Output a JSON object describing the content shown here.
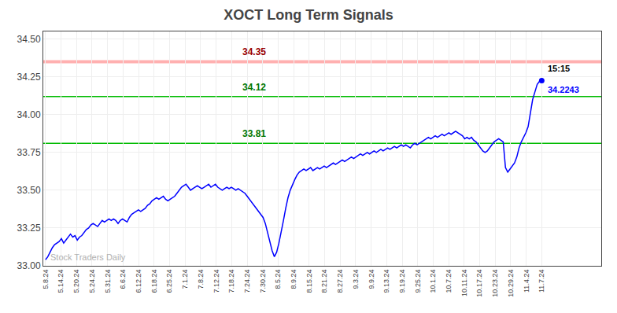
{
  "chart_data": {
    "type": "line",
    "title": "XOCT Long Term Signals",
    "color": "blue",
    "grid": true,
    "x": [
      0,
      1,
      2,
      3,
      4,
      5,
      6,
      7,
      8,
      9,
      10,
      11,
      12,
      13,
      14,
      15,
      16,
      17,
      18,
      19,
      20,
      21,
      22,
      23,
      24,
      25,
      26,
      27,
      28,
      29,
      30,
      31,
      32,
      33,
      34,
      35,
      36,
      37,
      38,
      39,
      40,
      41,
      42,
      43,
      44,
      45,
      46,
      47,
      48,
      49,
      50,
      51,
      52,
      53,
      54,
      55,
      56,
      57,
      58,
      59,
      60,
      61,
      62,
      63,
      64,
      65,
      66,
      67,
      68,
      69,
      70,
      71,
      72,
      73,
      74,
      75,
      76,
      77,
      78,
      79,
      80,
      81,
      82,
      83,
      84,
      85,
      86,
      87,
      88,
      89,
      90,
      91,
      92,
      93,
      94,
      95,
      96,
      97,
      98,
      99,
      100,
      101,
      102,
      103,
      104,
      105,
      106,
      107,
      108,
      109,
      110,
      111,
      112,
      113,
      114,
      115,
      116,
      117,
      118,
      119,
      120,
      121,
      122,
      123,
      124,
      125,
      126,
      127,
      128,
      129,
      130,
      131,
      132,
      133,
      134,
      135,
      136,
      137,
      138,
      139,
      140,
      141,
      142,
      143,
      144,
      145,
      146,
      147,
      148,
      149,
      150,
      151,
      152,
      153,
      154,
      155,
      156,
      157,
      158,
      159,
      160,
      161,
      162,
      163,
      164,
      165,
      166,
      167,
      168,
      169,
      170,
      171,
      172,
      173,
      174,
      175,
      176,
      177,
      178,
      179,
      180,
      181,
      182,
      183,
      184,
      185,
      186,
      187,
      188,
      189,
      190,
      191,
      192,
      193,
      194,
      195,
      196,
      197,
      198,
      199,
      200,
      201,
      202,
      203,
      204,
      205,
      206,
      207,
      208,
      209,
      210,
      211,
      212,
      213,
      214,
      215,
      216,
      217,
      218,
      219
    ],
    "values": [
      33.04,
      33.06,
      33.09,
      33.12,
      33.14,
      33.15,
      33.16,
      33.18,
      33.15,
      33.17,
      33.19,
      33.21,
      33.19,
      33.2,
      33.17,
      33.19,
      33.2,
      33.22,
      33.24,
      33.25,
      33.27,
      33.28,
      33.27,
      33.26,
      33.28,
      33.3,
      33.29,
      33.3,
      33.31,
      33.3,
      33.31,
      33.3,
      33.28,
      33.3,
      33.31,
      33.3,
      33.29,
      33.32,
      33.34,
      33.35,
      33.36,
      33.37,
      33.36,
      33.37,
      33.38,
      33.4,
      33.41,
      33.43,
      33.44,
      33.45,
      33.44,
      33.45,
      33.46,
      33.44,
      33.43,
      33.44,
      33.45,
      33.46,
      33.48,
      33.5,
      33.52,
      33.53,
      33.54,
      33.52,
      33.5,
      33.51,
      33.52,
      33.53,
      33.52,
      33.51,
      33.52,
      33.53,
      33.54,
      33.52,
      33.53,
      33.54,
      33.52,
      33.51,
      33.5,
      33.51,
      33.52,
      33.51,
      33.52,
      33.51,
      33.5,
      33.51,
      33.5,
      33.49,
      33.48,
      33.46,
      33.44,
      33.42,
      33.4,
      33.38,
      33.36,
      33.34,
      33.32,
      33.28,
      33.22,
      33.15,
      33.1,
      33.06,
      33.09,
      33.15,
      33.22,
      33.3,
      33.38,
      33.45,
      33.5,
      33.54,
      33.57,
      33.6,
      33.62,
      33.63,
      33.64,
      33.63,
      33.64,
      33.65,
      33.63,
      33.64,
      33.65,
      33.64,
      33.65,
      33.66,
      33.65,
      33.66,
      33.67,
      33.68,
      33.67,
      33.68,
      33.69,
      33.7,
      33.69,
      33.7,
      33.71,
      33.72,
      33.71,
      33.72,
      33.73,
      33.74,
      33.73,
      33.74,
      33.75,
      33.74,
      33.75,
      33.76,
      33.75,
      33.76,
      33.77,
      33.76,
      33.77,
      33.78,
      33.77,
      33.78,
      33.79,
      33.78,
      33.79,
      33.8,
      33.79,
      33.8,
      33.79,
      33.78,
      33.8,
      33.81,
      33.8,
      33.81,
      33.82,
      33.83,
      33.84,
      33.85,
      33.84,
      33.85,
      33.86,
      33.85,
      33.86,
      33.87,
      33.86,
      33.87,
      33.88,
      33.87,
      33.88,
      33.89,
      33.88,
      33.87,
      33.86,
      33.84,
      33.85,
      33.84,
      33.85,
      33.83,
      33.82,
      33.8,
      33.78,
      33.76,
      33.75,
      33.76,
      33.78,
      33.8,
      33.82,
      33.83,
      33.84,
      33.83,
      33.82,
      33.65,
      33.62,
      33.64,
      33.66,
      33.68,
      33.72,
      33.78,
      33.82,
      33.85,
      33.88,
      33.92,
      34.0,
      34.1,
      34.15,
      34.2,
      34.22,
      34.2243
    ],
    "xlim": [
      -1,
      245.28
    ],
    "xticks": [
      {
        "value": 0,
        "label": "5.8.24"
      },
      {
        "value": 6.84375,
        "label": "5.14.24"
      },
      {
        "value": 13.6875,
        "label": "5.20.24"
      },
      {
        "value": 20.53125,
        "label": "5.24.24"
      },
      {
        "value": 27.375,
        "label": "5.31.24"
      },
      {
        "value": 34.21875,
        "label": "6.6.24"
      },
      {
        "value": 41.0625,
        "label": "6.12.24"
      },
      {
        "value": 47.90625,
        "label": "6.18.24"
      },
      {
        "value": 54.75,
        "label": "6.25.24"
      },
      {
        "value": 61.59375,
        "label": "7.1.24"
      },
      {
        "value": 68.4375,
        "label": "7.8.24"
      },
      {
        "value": 75.28125,
        "label": "7.12.24"
      },
      {
        "value": 82.125,
        "label": "7.18.24"
      },
      {
        "value": 88.96875,
        "label": "7.24.24"
      },
      {
        "value": 95.8125,
        "label": "7.30.24"
      },
      {
        "value": 102.65625,
        "label": "8.5.24"
      },
      {
        "value": 109.5,
        "label": "8.9.24"
      },
      {
        "value": 116.34375,
        "label": "8.15.24"
      },
      {
        "value": 123.1875,
        "label": "8.21.24"
      },
      {
        "value": 130.03125,
        "label": "8.27.24"
      },
      {
        "value": 136.875,
        "label": "9.3.24"
      },
      {
        "value": 143.71875,
        "label": "9.9.24"
      },
      {
        "value": 150.5625,
        "label": "9.13.24"
      },
      {
        "value": 157.40625,
        "label": "9.19.24"
      },
      {
        "value": 164.25,
        "label": "9.25.24"
      },
      {
        "value": 171.09375,
        "label": "10.1.24"
      },
      {
        "value": 177.9375,
        "label": "10.7.24"
      },
      {
        "value": 184.78125,
        "label": "10.11.24"
      },
      {
        "value": 191.625,
        "label": "10.17.24"
      },
      {
        "value": 198.46875,
        "label": "10.23.24"
      },
      {
        "value": 205.3125,
        "label": "10.29.24"
      },
      {
        "value": 212.15625,
        "label": "11.4.24"
      },
      {
        "value": 219,
        "label": "11.7.24"
      }
    ],
    "ylim": [
      33.0,
      34.55
    ],
    "yticks": [
      {
        "value": 33.0,
        "label": "33.00"
      },
      33.25,
      {
        "value": 33.5,
        "label": "33.50"
      },
      33.75,
      {
        "value": 34.0,
        "label": "34.00"
      },
      34.25,
      {
        "value": 34.5,
        "label": "34.50"
      }
    ],
    "hlines": [
      {
        "value": 34.35,
        "label": "34.35",
        "color": "#ffb0b0",
        "label_color": "#990000"
      },
      {
        "value": 34.12,
        "label": "34.12",
        "color": "#00bb00",
        "label_color": "#007700"
      },
      {
        "value": 33.81,
        "label": "33.81",
        "color": "#00bb00",
        "label_color": "#007700"
      }
    ],
    "last_point": {
      "time": "15:15",
      "time_color": "black",
      "label": "34.2243",
      "color": "blue"
    },
    "watermark": {
      "text": "Stock Traders Daily",
      "color": "#b0b0b0"
    }
  }
}
